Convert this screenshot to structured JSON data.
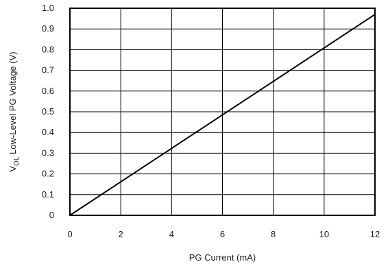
{
  "chart_data": {
    "type": "line",
    "title": "",
    "xlabel": "PG Current (mA)",
    "ylabel": {
      "prefix": "V",
      "subscript": "OL",
      "rest": " Low-Level PG Voltage (V)"
    },
    "xlim": [
      0,
      12
    ],
    "ylim": [
      0,
      1.0
    ],
    "xticks": [
      0,
      2,
      4,
      6,
      8,
      10,
      12
    ],
    "yticks": [
      0,
      0.1,
      0.2,
      0.3,
      0.4,
      0.5,
      0.6,
      0.7,
      0.8,
      0.9,
      1.0
    ],
    "xtick_labels": [
      "0",
      "2",
      "4",
      "6",
      "8",
      "10",
      "12"
    ],
    "ytick_labels": [
      "0",
      "0.1",
      "0.2",
      "0.3",
      "0.4",
      "0.5",
      "0.6",
      "0.7",
      "0.8",
      "0.9",
      "1.0"
    ],
    "grid": true,
    "series": [
      {
        "x": [
          0,
          12
        ],
        "y": [
          0,
          0.97
        ],
        "color": "#000000"
      }
    ]
  }
}
